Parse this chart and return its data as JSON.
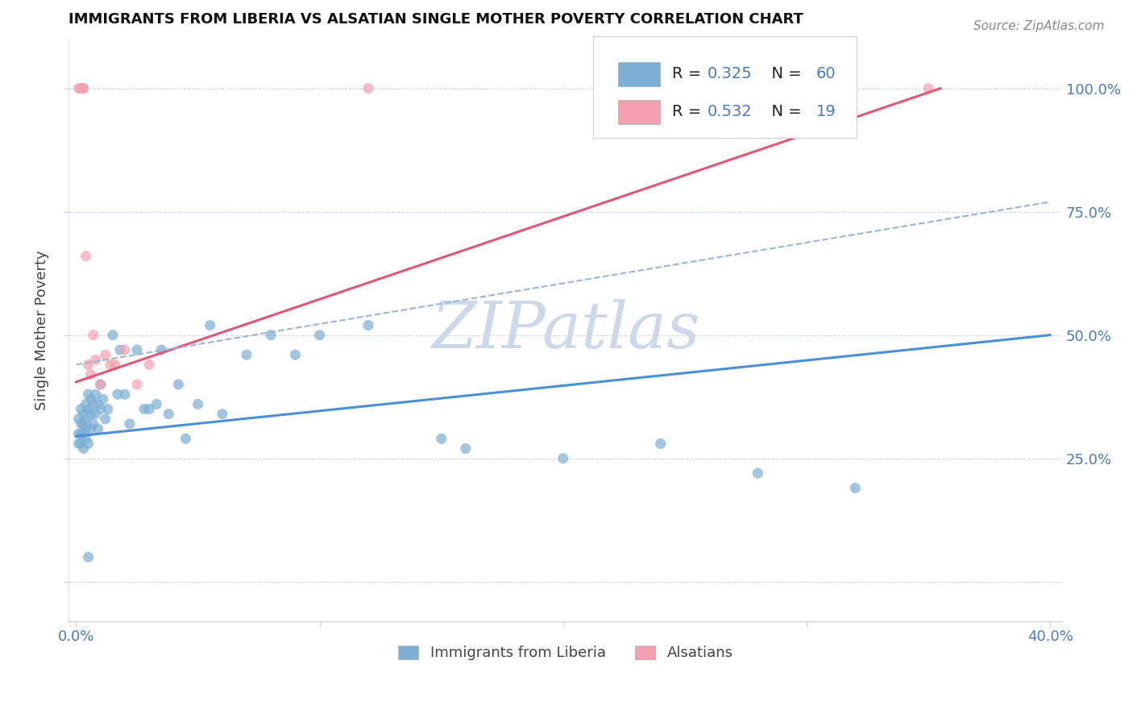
{
  "title": "IMMIGRANTS FROM LIBERIA VS ALSATIAN SINGLE MOTHER POVERTY CORRELATION CHART",
  "source": "Source: ZipAtlas.com",
  "ylabel": "Single Mother Poverty",
  "xlim": [
    -0.003,
    0.405
  ],
  "ylim": [
    -0.08,
    1.1
  ],
  "blue_R": 0.325,
  "blue_N": 60,
  "pink_R": 0.532,
  "pink_N": 19,
  "blue_color": "#7bafd4",
  "pink_color": "#f4a0b0",
  "blue_line_color": "#4a90d9",
  "pink_line_color": "#e05878",
  "dashed_line_color": "#9bb5d4",
  "tick_color": "#4a7abf",
  "watermark": "ZIPatlas",
  "watermark_color": "#cdd8ea",
  "blue_line_x": [
    0.0,
    0.4
  ],
  "blue_line_y": [
    0.295,
    0.5
  ],
  "pink_line_x": [
    0.0,
    0.355
  ],
  "pink_line_y": [
    0.405,
    1.0
  ],
  "dash_line_x": [
    0.0,
    0.4
  ],
  "dash_line_y": [
    0.44,
    0.77
  ],
  "blue_scatter_x": [
    0.001,
    0.001,
    0.001,
    0.002,
    0.002,
    0.002,
    0.002,
    0.003,
    0.003,
    0.003,
    0.003,
    0.004,
    0.004,
    0.004,
    0.004,
    0.005,
    0.005,
    0.005,
    0.006,
    0.006,
    0.006,
    0.007,
    0.007,
    0.008,
    0.008,
    0.009,
    0.009,
    0.01,
    0.01,
    0.011,
    0.012,
    0.013,
    0.015,
    0.017,
    0.018,
    0.02,
    0.022,
    0.025,
    0.028,
    0.03,
    0.033,
    0.035,
    0.038,
    0.042,
    0.045,
    0.05,
    0.055,
    0.06,
    0.07,
    0.08,
    0.09,
    0.1,
    0.12,
    0.15,
    0.16,
    0.2,
    0.24,
    0.28,
    0.32,
    0.005
  ],
  "blue_scatter_y": [
    0.33,
    0.3,
    0.28,
    0.35,
    0.32,
    0.3,
    0.28,
    0.34,
    0.32,
    0.3,
    0.27,
    0.36,
    0.33,
    0.31,
    0.29,
    0.38,
    0.35,
    0.28,
    0.37,
    0.34,
    0.31,
    0.36,
    0.32,
    0.38,
    0.34,
    0.36,
    0.31,
    0.4,
    0.35,
    0.37,
    0.33,
    0.35,
    0.5,
    0.38,
    0.47,
    0.38,
    0.32,
    0.47,
    0.35,
    0.35,
    0.36,
    0.47,
    0.34,
    0.4,
    0.29,
    0.36,
    0.52,
    0.34,
    0.46,
    0.5,
    0.46,
    0.5,
    0.52,
    0.29,
    0.27,
    0.25,
    0.28,
    0.22,
    0.19,
    0.05
  ],
  "pink_scatter_x": [
    0.001,
    0.002,
    0.002,
    0.003,
    0.003,
    0.004,
    0.005,
    0.006,
    0.007,
    0.008,
    0.01,
    0.012,
    0.014,
    0.016,
    0.02,
    0.025,
    0.03,
    0.12,
    0.35
  ],
  "pink_scatter_y": [
    1.0,
    1.0,
    1.0,
    1.0,
    1.0,
    0.66,
    0.44,
    0.42,
    0.5,
    0.45,
    0.4,
    0.46,
    0.44,
    0.44,
    0.47,
    0.4,
    0.44,
    1.0,
    1.0
  ]
}
